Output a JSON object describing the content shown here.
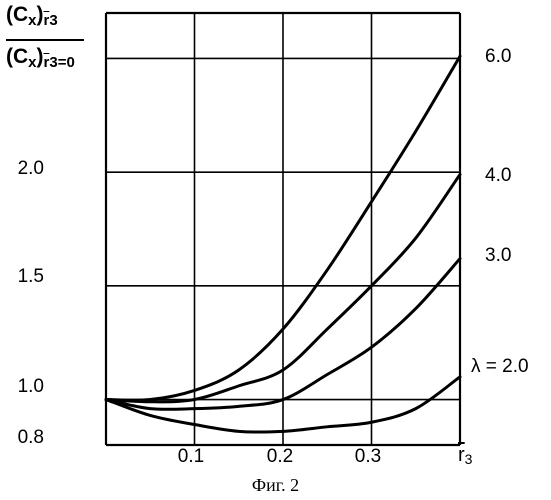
{
  "caption": "Фиг. 2",
  "chart_data": {
    "type": "line",
    "ylabel_numerator": "(Cx)r3",
    "ylabel_numerator_parts": {
      "base": "(C",
      "sub1": "x",
      "mid": ")",
      "sub2": "r",
      "sub3": "3"
    },
    "ylabel_denominator": "(Cx)r3=0",
    "ylabel_denominator_parts": {
      "base": "(C",
      "sub1": "x",
      "mid": ")",
      "sub2": "r",
      "sub3": "3=0"
    },
    "xlabel": "r3",
    "xlabel_parts": {
      "base": "r",
      "sub": "3"
    },
    "xlim": [
      0,
      0.4
    ],
    "ylim": [
      0.8,
      2.7
    ],
    "x_ticks": [
      {
        "value": 0.1,
        "label": "0.1"
      },
      {
        "value": 0.2,
        "label": "0.2"
      },
      {
        "value": 0.3,
        "label": "0.3"
      }
    ],
    "y_ticks": [
      {
        "value": 0.8,
        "label": "0.8"
      },
      {
        "value": 1.0,
        "label": "1.0"
      },
      {
        "value": 1.5,
        "label": "1.5"
      },
      {
        "value": 2.0,
        "label": "2.0"
      }
    ],
    "y_gridlines": [
      1.0,
      1.5,
      2.0,
      2.5
    ],
    "x_gridlines": [
      0.1,
      0.2,
      0.3
    ],
    "grid": true,
    "series": [
      {
        "name": "6.0",
        "x": [
          0,
          0.05,
          0.1,
          0.15,
          0.2,
          0.25,
          0.3,
          0.35,
          0.4
        ],
        "y": [
          1.0,
          1.0,
          1.04,
          1.13,
          1.31,
          1.57,
          1.87,
          2.18,
          2.51
        ]
      },
      {
        "name": "4.0",
        "x": [
          0,
          0.05,
          0.1,
          0.15,
          0.2,
          0.25,
          0.3,
          0.35,
          0.4
        ],
        "y": [
          1.0,
          0.99,
          1.0,
          1.06,
          1.13,
          1.31,
          1.5,
          1.71,
          1.99
        ]
      },
      {
        "name": "3.0",
        "x": [
          0,
          0.05,
          0.1,
          0.15,
          0.2,
          0.25,
          0.3,
          0.35,
          0.4
        ],
        "y": [
          1.0,
          0.96,
          0.96,
          0.97,
          1.0,
          1.11,
          1.23,
          1.4,
          1.62
        ]
      },
      {
        "name": "λ = 2.0",
        "x": [
          0,
          0.05,
          0.1,
          0.15,
          0.2,
          0.25,
          0.3,
          0.35,
          0.4
        ],
        "y": [
          1.0,
          0.93,
          0.89,
          0.86,
          0.86,
          0.88,
          0.9,
          0.96,
          1.1
        ]
      }
    ]
  }
}
